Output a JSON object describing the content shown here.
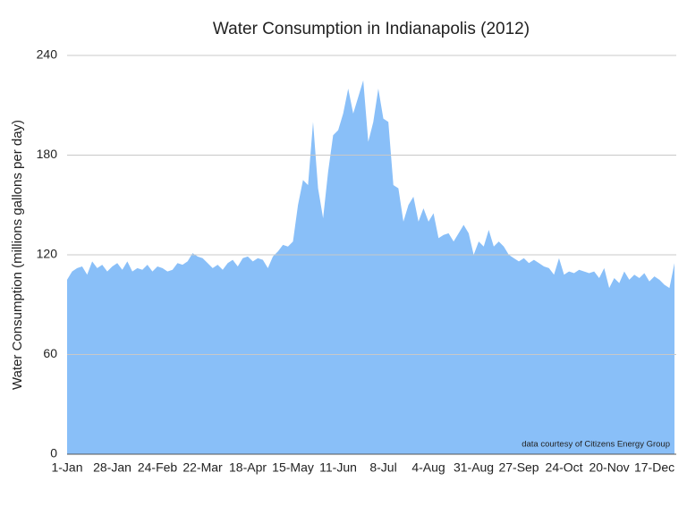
{
  "chart_data": {
    "type": "area",
    "title": "Water Consumption in Indianapolis (2012)",
    "y_label": "Water Consumption (millions gallons per day)",
    "annotation": "data courtesy of Citizens Energy Group",
    "color": "#89bff8",
    "grid": true,
    "ylim": [
      0,
      240
    ],
    "yticks": [
      0,
      60,
      120,
      180,
      240
    ],
    "categories": [
      "1-Jan",
      null,
      null,
      null,
      null,
      null,
      null,
      null,
      null,
      "28-Jan",
      null,
      null,
      null,
      null,
      null,
      null,
      null,
      null,
      "24-Feb",
      null,
      null,
      null,
      null,
      null,
      null,
      null,
      null,
      "22-Mar",
      null,
      null,
      null,
      null,
      null,
      null,
      null,
      null,
      "18-Apr",
      null,
      null,
      null,
      null,
      null,
      null,
      null,
      null,
      "15-May",
      null,
      null,
      null,
      null,
      null,
      null,
      null,
      null,
      "11-Jun",
      null,
      null,
      null,
      null,
      null,
      null,
      null,
      null,
      "8-Jul",
      null,
      null,
      null,
      null,
      null,
      null,
      null,
      null,
      "4-Aug",
      null,
      null,
      null,
      null,
      null,
      null,
      null,
      null,
      "31-Aug",
      null,
      null,
      null,
      null,
      null,
      null,
      null,
      null,
      "27-Sep",
      null,
      null,
      null,
      null,
      null,
      null,
      null,
      null,
      "24-Oct",
      null,
      null,
      null,
      null,
      null,
      null,
      null,
      null,
      "20-Nov",
      null,
      null,
      null,
      null,
      null,
      null,
      null,
      null,
      "17-Dec",
      null,
      null,
      null,
      null
    ],
    "values": [
      105,
      110,
      112,
      113,
      108,
      116,
      112,
      114,
      110,
      113,
      115,
      111,
      116,
      110,
      112,
      111,
      114,
      110,
      113,
      112,
      110,
      111,
      115,
      114,
      116,
      121,
      119,
      118,
      115,
      112,
      114,
      111,
      115,
      117,
      113,
      118,
      119,
      116,
      118,
      117,
      112,
      119,
      122,
      126,
      125,
      128,
      150,
      165,
      162,
      200,
      160,
      142,
      170,
      192,
      195,
      205,
      220,
      205,
      215,
      225,
      188,
      200,
      220,
      202,
      200,
      162,
      160,
      140,
      150,
      155,
      140,
      148,
      140,
      145,
      130,
      132,
      133,
      128,
      133,
      138,
      133,
      120,
      128,
      125,
      135,
      125,
      128,
      125,
      120,
      118,
      116,
      118,
      115,
      117,
      115,
      113,
      112,
      108,
      118,
      108,
      110,
      109,
      111,
      110,
      109,
      110,
      106,
      112,
      100,
      106,
      103,
      110,
      105,
      108,
      106,
      109,
      104,
      107,
      105,
      102,
      100,
      115
    ]
  }
}
